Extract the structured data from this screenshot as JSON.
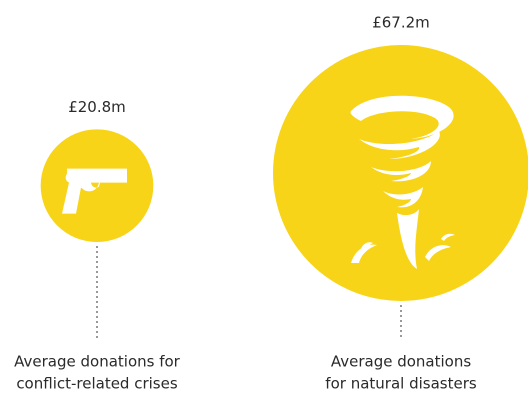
{
  "chart_data": {
    "type": "bubble",
    "color": "#f7d417",
    "categories": [
      [
        "Average donations for",
        "conflict-related crises"
      ],
      [
        "Average donations",
        "for natural disasters"
      ]
    ],
    "values": [
      20.8,
      67.2
    ],
    "value_labels": [
      "£20.8m",
      "£67.2m"
    ]
  }
}
